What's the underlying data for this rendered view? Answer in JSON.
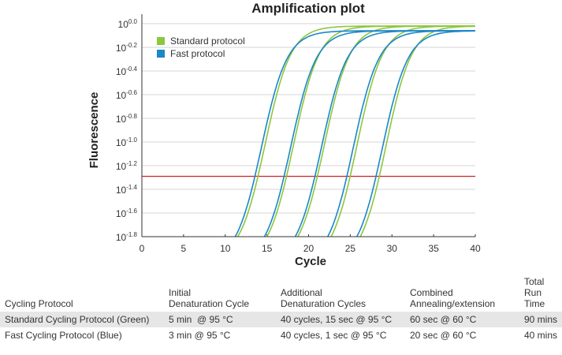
{
  "chart_data": {
    "type": "line",
    "title": "Amplification plot",
    "xlabel": "Cycle",
    "ylabel": "Fluorescence",
    "xlim": [
      0,
      40
    ],
    "ylim_log10": [
      -1.8,
      0.0
    ],
    "x_ticks": [
      0,
      5,
      10,
      15,
      20,
      25,
      30,
      35,
      40
    ],
    "y_ticks": [
      {
        "base": "10",
        "exp": "0.0",
        "value": 0.0
      },
      {
        "base": "10",
        "exp": "-0.2",
        "value": -0.2
      },
      {
        "base": "10",
        "exp": "-0.4",
        "value": -0.4
      },
      {
        "base": "10",
        "exp": "-0.6",
        "value": -0.6
      },
      {
        "base": "10",
        "exp": "-0.8",
        "value": -0.8
      },
      {
        "base": "10",
        "exp": "-1.0",
        "value": -1.0
      },
      {
        "base": "10",
        "exp": "-1.2",
        "value": -1.2
      },
      {
        "base": "10",
        "exp": "-1.4",
        "value": -1.4
      },
      {
        "base": "10",
        "exp": "-1.6",
        "value": -1.6
      },
      {
        "base": "10",
        "exp": "-1.8",
        "value": -1.8
      }
    ],
    "grid": "horizontal",
    "threshold": {
      "log10_value": -1.29,
      "color": "#cc2222"
    },
    "legend": [
      {
        "name": "Standard protocol",
        "color": "#8dc63f"
      },
      {
        "name": "Fast protocol",
        "color": "#1a87c9"
      }
    ],
    "series": [
      {
        "name": "Standard protocol",
        "color": "#8dc63f",
        "ct": [
          13.4,
          16.8,
          20.5,
          24.4,
          27.9
        ],
        "rise_start": [
          11.5,
          15.0,
          18.7,
          22.7,
          26.2
        ],
        "plateau": -0.02
      },
      {
        "name": "Fast protocol",
        "color": "#1a87c9",
        "ct": [
          13.0,
          16.5,
          20.2,
          24.0,
          27.5
        ],
        "rise_start": [
          11.2,
          14.7,
          18.4,
          22.3,
          25.8
        ],
        "plateau": -0.06
      }
    ]
  },
  "table": {
    "headers": [
      [
        "Cycling Protocol"
      ],
      [
        "Initial",
        "Denaturation Cycle"
      ],
      [
        "Additional",
        "Denaturation Cycles"
      ],
      [
        "Combined",
        "Annealing/extension"
      ],
      [
        "Total",
        "Run Time"
      ]
    ],
    "rows": [
      [
        "Standard Cycling Protocol (Green)",
        "5 min  @ 95 °C",
        "40 cycles, 15 sec @ 95 °C",
        "60 sec @ 60 °C",
        "90 mins"
      ],
      [
        "Fast Cycling Protocol (Blue)",
        "3 min @ 95 °C",
        "40 cycles, 1 sec @ 95 °C",
        "20 sec @ 60 °C",
        "40 mins"
      ]
    ]
  }
}
